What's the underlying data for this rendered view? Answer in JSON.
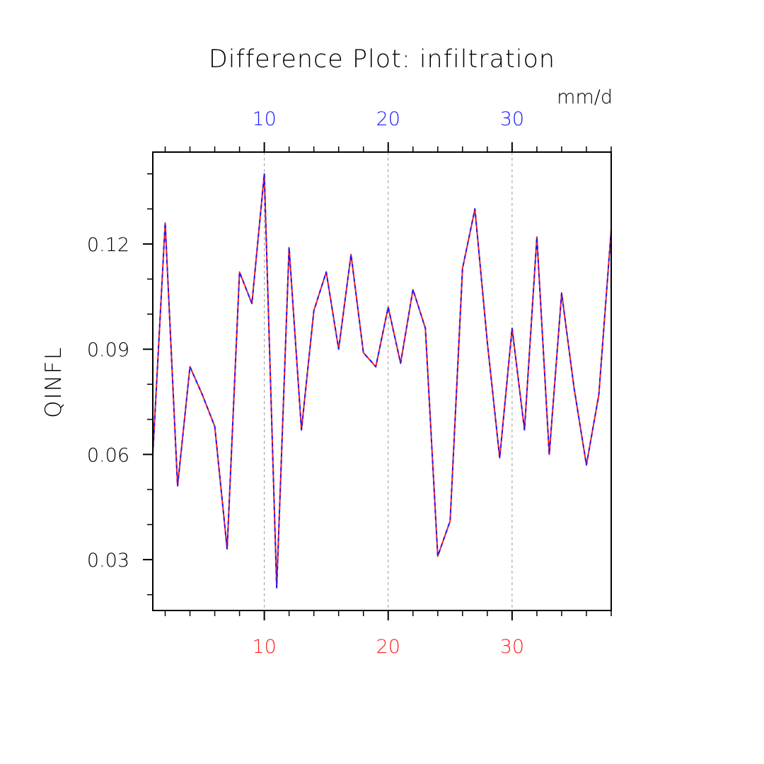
{
  "chart_data": {
    "type": "line",
    "title": "Difference Plot: infiltration",
    "units": "mm/d",
    "ylabel": "QINFL",
    "xlabel": "",
    "xlim": [
      1,
      38
    ],
    "ylim": [
      0.0155,
      0.1462
    ],
    "x_ticks_top": [
      10,
      20,
      30
    ],
    "x_ticks_bottom": [
      10,
      20,
      30
    ],
    "y_ticks": [
      0.03,
      0.06,
      0.09,
      0.12
    ],
    "y_tick_labels": [
      "0.03",
      "0.06",
      "0.09",
      "0.12"
    ],
    "x_tick_labels_top": [
      "10",
      "20",
      "30"
    ],
    "x_tick_labels_bottom": [
      "10",
      "20",
      "30"
    ],
    "grid": "vertical dashed at major x ticks",
    "x": [
      1,
      2,
      3,
      4,
      5,
      6,
      7,
      8,
      9,
      10,
      11,
      12,
      13,
      14,
      15,
      16,
      17,
      18,
      19,
      20,
      21,
      22,
      23,
      24,
      25,
      26,
      27,
      28,
      29,
      30,
      31,
      32,
      33,
      34,
      35,
      36,
      37,
      38
    ],
    "series": [
      {
        "color": "#ff2020",
        "style": "solid",
        "values": [
          0.06,
          0.126,
          0.051,
          0.085,
          0.077,
          0.068,
          0.033,
          0.112,
          0.103,
          0.14,
          0.022,
          0.119,
          0.067,
          0.101,
          0.112,
          0.09,
          0.117,
          0.089,
          0.085,
          0.102,
          0.086,
          0.107,
          0.096,
          0.031,
          0.041,
          0.113,
          0.13,
          0.092,
          0.059,
          0.096,
          0.067,
          0.122,
          0.06,
          0.106,
          0.079,
          0.057,
          0.077,
          0.124
        ]
      },
      {
        "color": "#1a1aff",
        "style": "dashed",
        "values": [
          0.06,
          0.126,
          0.051,
          0.085,
          0.077,
          0.068,
          0.033,
          0.112,
          0.103,
          0.14,
          0.022,
          0.119,
          0.067,
          0.101,
          0.112,
          0.09,
          0.117,
          0.089,
          0.085,
          0.102,
          0.086,
          0.107,
          0.096,
          0.031,
          0.041,
          0.113,
          0.13,
          0.092,
          0.059,
          0.096,
          0.067,
          0.122,
          0.06,
          0.106,
          0.079,
          0.057,
          0.077,
          0.124
        ]
      }
    ]
  },
  "colors": {
    "top_axis": "#1a1aff",
    "bottom_axis": "#ff2020",
    "frame": "#000000"
  }
}
